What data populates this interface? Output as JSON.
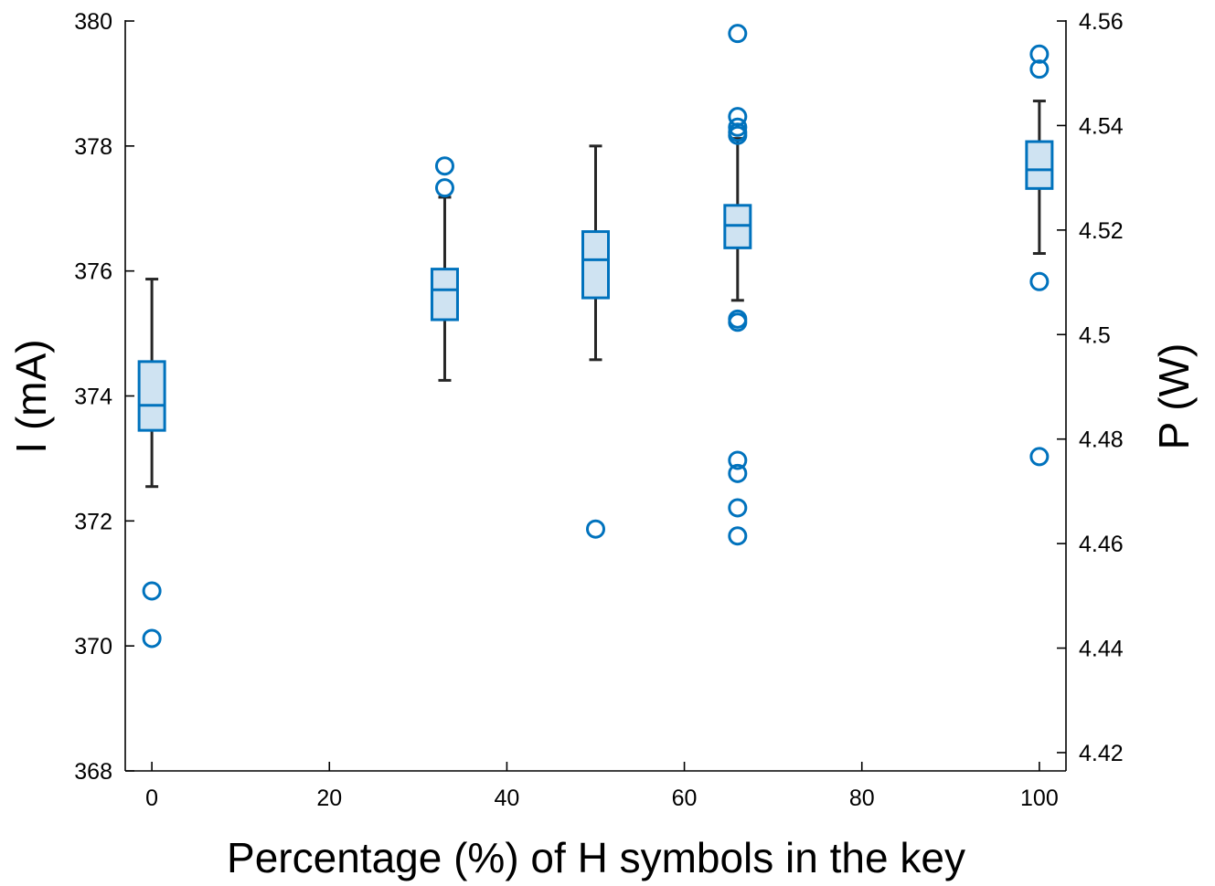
{
  "chart_data": {
    "type": "box",
    "xlabel": "Percentage (%) of H symbols in the key",
    "ylabel_left": "I (mA)",
    "ylabel_right": "P (W)",
    "xlim": [
      -3,
      103
    ],
    "ylim_left": [
      368,
      380
    ],
    "ylim_right": [
      4.4165,
      4.56
    ],
    "x_ticks": [
      0,
      20,
      40,
      60,
      80,
      100
    ],
    "y_ticks_left": [
      368,
      370,
      372,
      374,
      376,
      378,
      380
    ],
    "y_ticks_right": [
      4.42,
      4.44,
      4.46,
      4.48,
      4.5,
      4.52,
      4.54,
      4.56
    ],
    "y_tick_labels_right": [
      "4.42",
      "4.44",
      "4.46",
      "4.48",
      "4.5",
      "4.52",
      "4.54",
      "4.56"
    ],
    "grid": false,
    "colors": {
      "box_edge": "#0072bd",
      "box_fill": "#cfe3f2",
      "whisker": "#262626",
      "outlier": "#0072bd"
    },
    "boxes": [
      {
        "x": 0,
        "q1": 373.45,
        "median": 373.85,
        "q3": 374.55,
        "whisker_low": 372.55,
        "whisker_high": 375.87,
        "outliers": [
          370.88,
          370.12
        ]
      },
      {
        "x": 33,
        "q1": 375.22,
        "median": 375.7,
        "q3": 376.03,
        "whisker_low": 374.25,
        "whisker_high": 377.18,
        "outliers": [
          377.68,
          377.33
        ]
      },
      {
        "x": 50,
        "q1": 375.57,
        "median": 376.18,
        "q3": 376.63,
        "whisker_low": 374.58,
        "whisker_high": 378.0,
        "outliers": [
          371.87
        ]
      },
      {
        "x": 66,
        "q1": 376.37,
        "median": 376.73,
        "q3": 377.05,
        "whisker_low": 375.53,
        "whisker_high": 378.12,
        "outliers": [
          379.8,
          378.47,
          378.3,
          378.22,
          378.17,
          375.23,
          375.18,
          372.97,
          372.76,
          372.21,
          371.76
        ]
      },
      {
        "x": 100,
        "q1": 377.32,
        "median": 377.62,
        "q3": 378.07,
        "whisker_low": 376.28,
        "whisker_high": 378.72,
        "outliers": [
          379.47,
          379.23,
          375.83,
          373.03
        ]
      }
    ]
  }
}
